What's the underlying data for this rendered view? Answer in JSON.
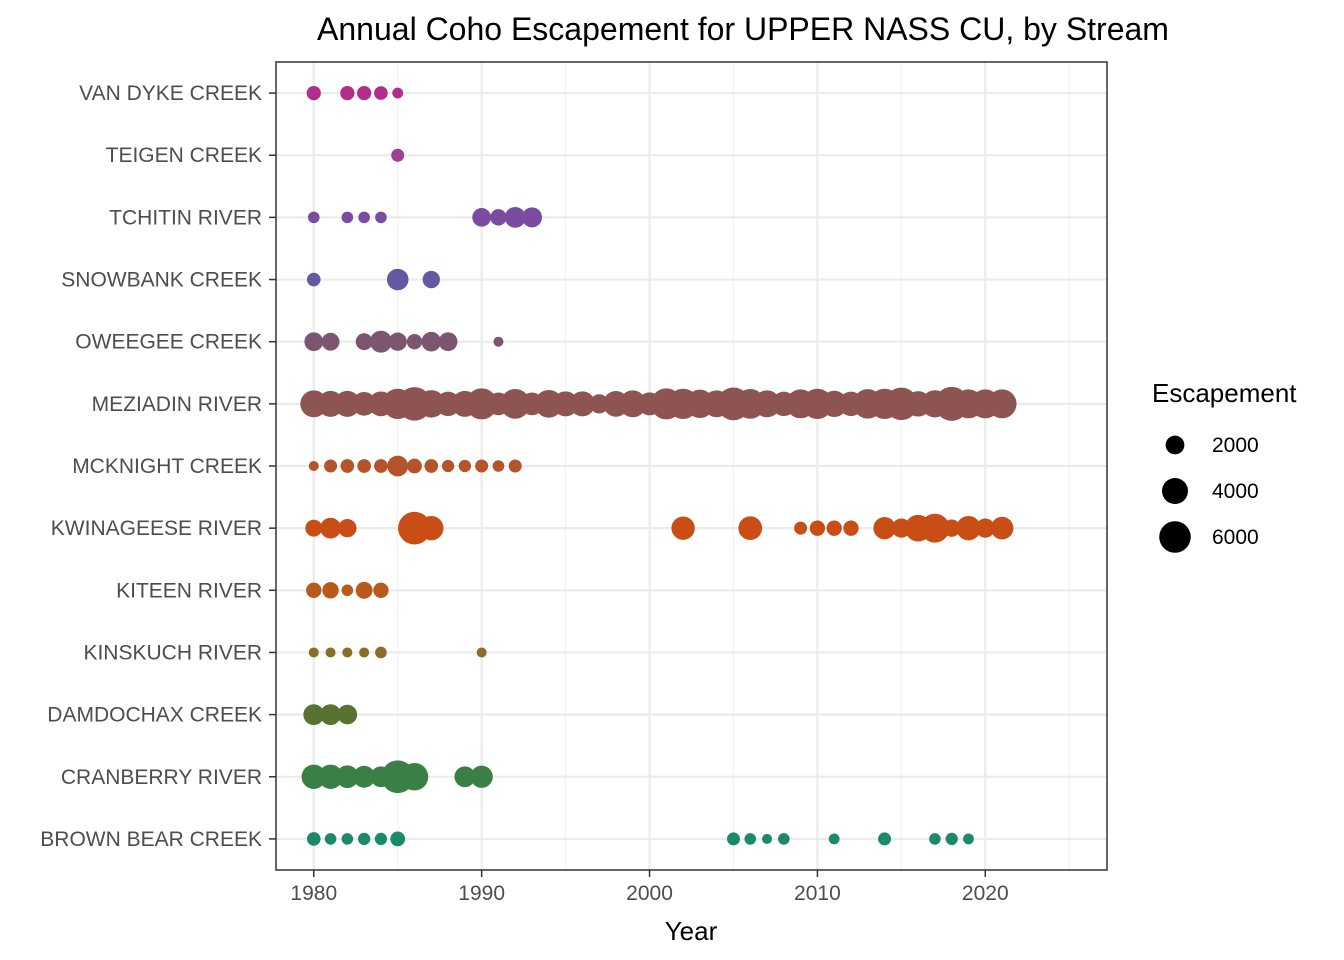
{
  "chart_data": {
    "type": "scatter",
    "title": "Annual Coho Escapement for UPPER NASS CU, by Stream",
    "xlabel": "Year",
    "ylabel": "",
    "xlim": [
      1977.75,
      2027.25
    ],
    "x_ticks": [
      1980,
      1990,
      2000,
      2010,
      2020
    ],
    "y_categories": [
      "BROWN BEAR CREEK",
      "CRANBERRY RIVER",
      "DAMDOCHAX CREEK",
      "KINSKUCH RIVER",
      "KITEEN RIVER",
      "KWINAGEESE RIVER",
      "MCKNIGHT CREEK",
      "MEZIADIN RIVER",
      "OWEEGEE CREEK",
      "SNOWBANK CREEK",
      "TCHITIN RIVER",
      "TEIGEN CREEK",
      "VAN DYKE CREEK"
    ],
    "grid": true,
    "legend": {
      "title": "Escapement",
      "position": "right",
      "entries": [
        2000,
        4000,
        6000
      ]
    },
    "series": [
      {
        "name": "BROWN BEAR CREEK",
        "color": "#1b8a6b",
        "points": [
          [
            1980,
            1000
          ],
          [
            1981,
            700
          ],
          [
            1982,
            700
          ],
          [
            1983,
            800
          ],
          [
            1984,
            800
          ],
          [
            1985,
            1200
          ],
          [
            2005,
            900
          ],
          [
            2006,
            700
          ],
          [
            2007,
            500
          ],
          [
            2008,
            700
          ],
          [
            2011,
            600
          ],
          [
            2014,
            900
          ],
          [
            2017,
            700
          ],
          [
            2018,
            800
          ],
          [
            2019,
            600
          ]
        ]
      },
      {
        "name": "CRANBERRY RIVER",
        "color": "#3a8046",
        "points": [
          [
            1980,
            3500
          ],
          [
            1981,
            3500
          ],
          [
            1982,
            3000
          ],
          [
            1983,
            2800
          ],
          [
            1984,
            2500
          ],
          [
            1985,
            6500
          ],
          [
            1986,
            4500
          ],
          [
            1989,
            2500
          ],
          [
            1990,
            2900
          ]
        ]
      },
      {
        "name": "DAMDOCHAX CREEK",
        "color": "#5a7230",
        "points": [
          [
            1980,
            2500
          ],
          [
            1981,
            2500
          ],
          [
            1982,
            2200
          ]
        ]
      },
      {
        "name": "KINSKUCH RIVER",
        "color": "#8a6d26",
        "points": [
          [
            1980,
            500
          ],
          [
            1981,
            500
          ],
          [
            1982,
            500
          ],
          [
            1983,
            500
          ],
          [
            1984,
            700
          ],
          [
            1990,
            500
          ]
        ]
      },
      {
        "name": "KITEEN RIVER",
        "color": "#b85a1b",
        "points": [
          [
            1980,
            1300
          ],
          [
            1981,
            1500
          ],
          [
            1982,
            700
          ],
          [
            1983,
            1600
          ],
          [
            1984,
            1300
          ]
        ]
      },
      {
        "name": "KWINAGEESE RIVER",
        "color": "#c94e16",
        "points": [
          [
            1980,
            1600
          ],
          [
            1981,
            2500
          ],
          [
            1982,
            1900
          ],
          [
            1986,
            6500
          ],
          [
            1987,
            3500
          ],
          [
            2002,
            3200
          ],
          [
            2006,
            3300
          ],
          [
            2009,
            900
          ],
          [
            2010,
            1300
          ],
          [
            2011,
            1300
          ],
          [
            2012,
            1300
          ],
          [
            2014,
            2900
          ],
          [
            2015,
            2100
          ],
          [
            2016,
            4200
          ],
          [
            2017,
            5000
          ],
          [
            2018,
            1700
          ],
          [
            2019,
            3500
          ],
          [
            2020,
            2100
          ],
          [
            2021,
            3000
          ]
        ]
      },
      {
        "name": "MCKNIGHT CREEK",
        "color": "#b5532a",
        "points": [
          [
            1980,
            500
          ],
          [
            1981,
            900
          ],
          [
            1982,
            1000
          ],
          [
            1983,
            1000
          ],
          [
            1984,
            1000
          ],
          [
            1985,
            2500
          ],
          [
            1986,
            1200
          ],
          [
            1987,
            1000
          ],
          [
            1988,
            800
          ],
          [
            1989,
            800
          ],
          [
            1990,
            900
          ],
          [
            1991,
            700
          ],
          [
            1992,
            900
          ]
        ]
      },
      {
        "name": "MEZIADIN RIVER",
        "color": "#8d5451",
        "points": [
          [
            1980,
            4300
          ],
          [
            1981,
            4000
          ],
          [
            1982,
            4000
          ],
          [
            1983,
            3300
          ],
          [
            1984,
            3600
          ],
          [
            1985,
            5500
          ],
          [
            1986,
            6800
          ],
          [
            1987,
            4500
          ],
          [
            1988,
            3500
          ],
          [
            1989,
            4000
          ],
          [
            1990,
            5800
          ],
          [
            1991,
            3000
          ],
          [
            1992,
            5300
          ],
          [
            1993,
            3000
          ],
          [
            1994,
            4600
          ],
          [
            1995,
            3700
          ],
          [
            1996,
            3700
          ],
          [
            1997,
            2100
          ],
          [
            1998,
            3900
          ],
          [
            1999,
            4300
          ],
          [
            2000,
            3100
          ],
          [
            2001,
            5800
          ],
          [
            2002,
            5500
          ],
          [
            2003,
            4800
          ],
          [
            2004,
            4300
          ],
          [
            2005,
            6500
          ],
          [
            2006,
            5300
          ],
          [
            2007,
            4300
          ],
          [
            2008,
            3500
          ],
          [
            2009,
            5000
          ],
          [
            2010,
            5500
          ],
          [
            2011,
            4100
          ],
          [
            2012,
            3500
          ],
          [
            2013,
            5200
          ],
          [
            2014,
            5500
          ],
          [
            2015,
            6400
          ],
          [
            2016,
            3800
          ],
          [
            2017,
            4400
          ],
          [
            2018,
            7000
          ],
          [
            2019,
            5000
          ],
          [
            2020,
            5000
          ],
          [
            2021,
            5000
          ]
        ]
      },
      {
        "name": "OWEEGEE CREEK",
        "color": "#7c5570",
        "points": [
          [
            1980,
            2000
          ],
          [
            1981,
            1800
          ],
          [
            1983,
            1600
          ],
          [
            1984,
            2800
          ],
          [
            1985,
            1900
          ],
          [
            1986,
            1300
          ],
          [
            1987,
            2200
          ],
          [
            1988,
            2000
          ],
          [
            1991,
            500
          ]
        ]
      },
      {
        "name": "SNOWBANK CREEK",
        "color": "#6458a3",
        "points": [
          [
            1980,
            1000
          ],
          [
            1985,
            2700
          ],
          [
            1987,
            1700
          ]
        ]
      },
      {
        "name": "TCHITIN RIVER",
        "color": "#7a4ba0",
        "points": [
          [
            1980,
            700
          ],
          [
            1982,
            700
          ],
          [
            1983,
            700
          ],
          [
            1984,
            700
          ],
          [
            1990,
            2000
          ],
          [
            1991,
            1500
          ],
          [
            1992,
            2500
          ],
          [
            1993,
            2300
          ]
        ]
      },
      {
        "name": "TEIGEN CREEK",
        "color": "#9e3f97",
        "points": [
          [
            1985,
            900
          ]
        ]
      },
      {
        "name": "VAN DYKE CREEK",
        "color": "#b02f8a",
        "points": [
          [
            1980,
            1100
          ],
          [
            1982,
            1100
          ],
          [
            1983,
            1100
          ],
          [
            1984,
            1000
          ],
          [
            1985,
            600
          ]
        ]
      }
    ]
  }
}
